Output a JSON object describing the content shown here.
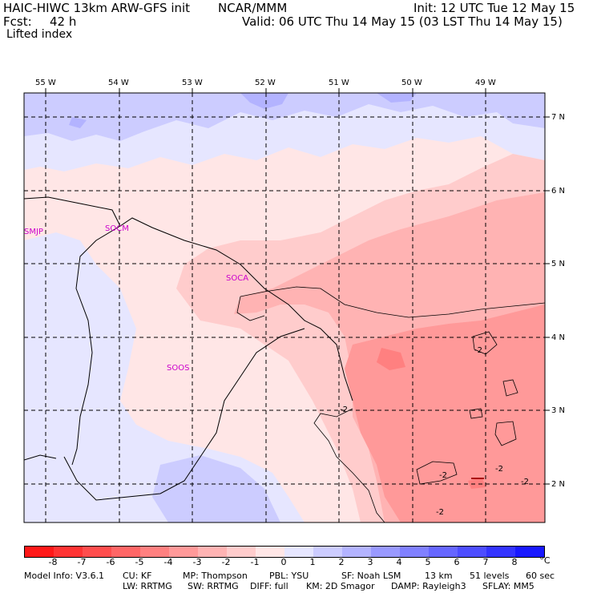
{
  "header": {
    "model": "HAIC-HIWC 13km ARW-GFS init",
    "org": "NCAR/MMM",
    "init": "Init: 12 UTC Tue 12 May 15",
    "fcst_label": "Fcst:",
    "fcst_value": "42 h",
    "valid": "Valid: 06 UTC Thu 14 May 15 (03 LST Thu 14 May 15)",
    "field": "Lifted index"
  },
  "map": {
    "lon_labels": [
      "55 W",
      "54 W",
      "53 W",
      "52 W",
      "51 W",
      "50 W",
      "49 W"
    ],
    "lat_labels": [
      "7 N",
      "6 N",
      "5 N",
      "4 N",
      "3 N",
      "2 N"
    ],
    "stations": [
      "SMJP",
      "SOCM",
      "SOCA",
      "SOOS"
    ],
    "contour_labels": [
      "-2",
      "-2",
      "-2",
      "-2",
      "-2",
      "-2"
    ]
  },
  "colorbar": {
    "labels": [
      "-8",
      "-7",
      "-6",
      "-5",
      "-4",
      "-3",
      "-2",
      "-1",
      "0",
      "1",
      "2",
      "3",
      "4",
      "5",
      "6",
      "7",
      "8"
    ],
    "unit": "°C",
    "colors": [
      "#ff1818",
      "#ff3333",
      "#ff4d4d",
      "#ff6666",
      "#ff8080",
      "#ff9999",
      "#ffb3b3",
      "#ffcccc",
      "#ffe6e6",
      "#e6e6ff",
      "#ccccff",
      "#b3b3ff",
      "#9999ff",
      "#8080ff",
      "#6666ff",
      "#4d4dff",
      "#3333ff",
      "#1818ff"
    ]
  },
  "footer": {
    "line1": [
      {
        "k": "model",
        "t": "Model Info: V3.6.1"
      },
      {
        "k": "cu",
        "t": "CU: KF"
      },
      {
        "k": "mp",
        "t": "MP: Thompson"
      },
      {
        "k": "pbl",
        "t": "PBL: YSU"
      },
      {
        "k": "sf",
        "t": "SF: Noah LSM"
      },
      {
        "k": "res",
        "t": "13 km"
      },
      {
        "k": "lev",
        "t": "51 levels"
      },
      {
        "k": "dt",
        "t": "60 sec"
      }
    ],
    "line2": [
      {
        "k": "lw",
        "t": "LW: RRTMG"
      },
      {
        "k": "sw",
        "t": "SW: RRTMG"
      },
      {
        "k": "diff",
        "t": "DIFF: full"
      },
      {
        "k": "km",
        "t": "KM: 2D Smagor"
      },
      {
        "k": "damp",
        "t": "DAMP: Rayleigh3"
      },
      {
        "k": "sflay",
        "t": "SFLAY: MM5"
      }
    ]
  }
}
